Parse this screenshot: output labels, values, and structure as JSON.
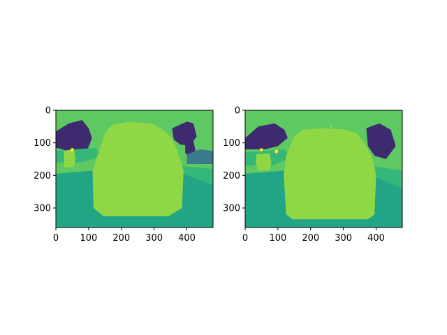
{
  "figure": {
    "background": "#ffffff"
  },
  "chart_data": [
    {
      "type": "heatmap",
      "title": "",
      "xlabel": "",
      "ylabel": "",
      "xlim": [
        0,
        480
      ],
      "ylim": [
        360,
        0
      ],
      "x_ticks": [
        0,
        100,
        200,
        300,
        400
      ],
      "y_ticks": [
        0,
        100,
        200,
        300
      ],
      "x_tick_labels": [
        "0",
        "100",
        "200",
        "300",
        "400"
      ],
      "y_tick_labels": [
        "0",
        "100",
        "200",
        "300"
      ],
      "colormap": "viridis",
      "colors": {
        "sky": "#5ec962",
        "trees": "#3e2a6f",
        "road": "#21a585",
        "sidewalk": "#35b779",
        "car": "#8fd744",
        "buildings": "#3b7a8c",
        "signal": "#fde725"
      },
      "regions": [
        {
          "class": "sky",
          "polygon": [
            [
              0,
              0
            ],
            [
              480,
              0
            ],
            [
              480,
              360
            ],
            [
              0,
              360
            ]
          ]
        },
        {
          "class": "trees",
          "polygon": [
            [
              0,
              65
            ],
            [
              40,
              40
            ],
            [
              80,
              30
            ],
            [
              100,
              55
            ],
            [
              110,
              85
            ],
            [
              95,
              125
            ],
            [
              60,
              135
            ],
            [
              20,
              120
            ],
            [
              0,
              115
            ]
          ]
        },
        {
          "class": "trees",
          "polygon": [
            [
              355,
              55
            ],
            [
              400,
              35
            ],
            [
              420,
              40
            ],
            [
              430,
              80
            ],
            [
              410,
              110
            ],
            [
              380,
              105
            ],
            [
              360,
              90
            ]
          ]
        },
        {
          "class": "trees",
          "polygon": [
            [
              395,
              85
            ],
            [
              420,
              95
            ],
            [
              430,
              140
            ],
            [
              410,
              150
            ],
            [
              395,
              130
            ]
          ]
        },
        {
          "class": "buildings",
          "polygon": [
            [
              400,
              135
            ],
            [
              440,
              120
            ],
            [
              480,
              125
            ],
            [
              480,
              165
            ],
            [
              400,
              165
            ]
          ]
        },
        {
          "class": "sidewalk",
          "polygon": [
            [
              0,
              125
            ],
            [
              120,
              115
            ],
            [
              140,
              140
            ],
            [
              80,
              160
            ],
            [
              0,
              160
            ]
          ]
        },
        {
          "class": "sidewalk",
          "polygon": [
            [
              370,
              170
            ],
            [
              480,
              180
            ],
            [
              480,
              260
            ],
            [
              390,
              250
            ]
          ]
        },
        {
          "class": "road",
          "polygon": [
            [
              0,
              195
            ],
            [
              120,
              185
            ],
            [
              140,
              210
            ],
            [
              180,
              180
            ],
            [
              340,
              180
            ],
            [
              400,
              200
            ],
            [
              480,
              230
            ],
            [
              480,
              360
            ],
            [
              0,
              360
            ]
          ]
        },
        {
          "class": "car",
          "polygon": [
            [
              130,
              130
            ],
            [
              150,
              70
            ],
            [
              170,
              45
            ],
            [
              225,
              35
            ],
            [
              290,
              40
            ],
            [
              320,
              55
            ],
            [
              350,
              80
            ],
            [
              370,
              120
            ],
            [
              390,
              185
            ],
            [
              385,
              300
            ],
            [
              345,
              325
            ],
            [
              145,
              325
            ],
            [
              115,
              300
            ],
            [
              112,
              185
            ]
          ]
        },
        {
          "class": "car",
          "polygon": [
            [
              25,
              125
            ],
            [
              55,
              120
            ],
            [
              60,
              145
            ],
            [
              55,
              175
            ],
            [
              25,
              175
            ]
          ]
        },
        {
          "class": "signal",
          "polygon": [
            [
              45,
              118
            ],
            [
              52,
              115
            ],
            [
              56,
              122
            ],
            [
              50,
              128
            ],
            [
              44,
              125
            ]
          ]
        }
      ]
    },
    {
      "type": "heatmap",
      "title": "",
      "xlabel": "",
      "ylabel": "",
      "xlim": [
        0,
        480
      ],
      "ylim": [
        360,
        0
      ],
      "x_ticks": [
        0,
        100,
        200,
        300,
        400
      ],
      "y_ticks": [
        0,
        100,
        200,
        300
      ],
      "x_tick_labels": [
        "0",
        "100",
        "200",
        "300",
        "400"
      ],
      "y_tick_labels": [
        "0",
        "100",
        "200",
        "300"
      ],
      "colormap": "viridis",
      "colors": {
        "sky": "#5ec962",
        "trees": "#3e2a6f",
        "road": "#21a585",
        "sidewalk": "#35b779",
        "car": "#8fd744",
        "buildings": "#3b7a8c",
        "signal": "#fde725"
      },
      "regions": [
        {
          "class": "sky",
          "polygon": [
            [
              0,
              0
            ],
            [
              480,
              0
            ],
            [
              480,
              360
            ],
            [
              0,
              360
            ]
          ]
        },
        {
          "class": "trees",
          "polygon": [
            [
              0,
              85
            ],
            [
              40,
              50
            ],
            [
              90,
              40
            ],
            [
              120,
              60
            ],
            [
              130,
              85
            ],
            [
              100,
              110
            ],
            [
              60,
              120
            ],
            [
              0,
              120
            ]
          ]
        },
        {
          "class": "trees",
          "polygon": [
            [
              370,
              55
            ],
            [
              410,
              40
            ],
            [
              445,
              60
            ],
            [
              460,
              110
            ],
            [
              430,
              150
            ],
            [
              395,
              140
            ],
            [
              375,
              110
            ]
          ]
        },
        {
          "class": "sidewalk",
          "polygon": [
            [
              0,
              130
            ],
            [
              120,
              120
            ],
            [
              140,
              145
            ],
            [
              80,
              170
            ],
            [
              0,
              170
            ]
          ]
        },
        {
          "class": "sidewalk",
          "polygon": [
            [
              380,
              170
            ],
            [
              480,
              185
            ],
            [
              480,
              250
            ],
            [
              395,
              240
            ]
          ]
        },
        {
          "class": "road",
          "polygon": [
            [
              0,
              195
            ],
            [
              120,
              185
            ],
            [
              140,
              205
            ],
            [
              180,
              180
            ],
            [
              340,
              180
            ],
            [
              400,
              205
            ],
            [
              480,
              240
            ],
            [
              480,
              360
            ],
            [
              0,
              360
            ]
          ]
        },
        {
          "class": "car",
          "polygon": [
            [
              260,
              40
            ],
            [
              264,
              40
            ],
            [
              264,
              65
            ],
            [
              260,
              65
            ]
          ]
        },
        {
          "class": "car",
          "polygon": [
            [
              125,
              140
            ],
            [
              150,
              80
            ],
            [
              175,
              60
            ],
            [
              230,
              55
            ],
            [
              300,
              58
            ],
            [
              340,
              70
            ],
            [
              365,
              100
            ],
            [
              390,
              150
            ],
            [
              400,
              200
            ],
            [
              395,
              320
            ],
            [
              375,
              335
            ],
            [
              145,
              335
            ],
            [
              125,
              320
            ],
            [
              118,
              200
            ]
          ]
        },
        {
          "class": "car",
          "polygon": [
            [
              35,
              135
            ],
            [
              75,
              132
            ],
            [
              80,
              160
            ],
            [
              75,
              185
            ],
            [
              40,
              185
            ],
            [
              32,
              160
            ]
          ]
        },
        {
          "class": "signal",
          "polygon": [
            [
              45,
              118
            ],
            [
              52,
              116
            ],
            [
              56,
              122
            ],
            [
              50,
              127
            ],
            [
              44,
              124
            ]
          ]
        },
        {
          "class": "signal",
          "polygon": [
            [
              92,
              122
            ],
            [
              98,
              120
            ],
            [
              102,
              127
            ],
            [
              96,
              133
            ],
            [
              90,
              129
            ]
          ]
        }
      ]
    }
  ]
}
